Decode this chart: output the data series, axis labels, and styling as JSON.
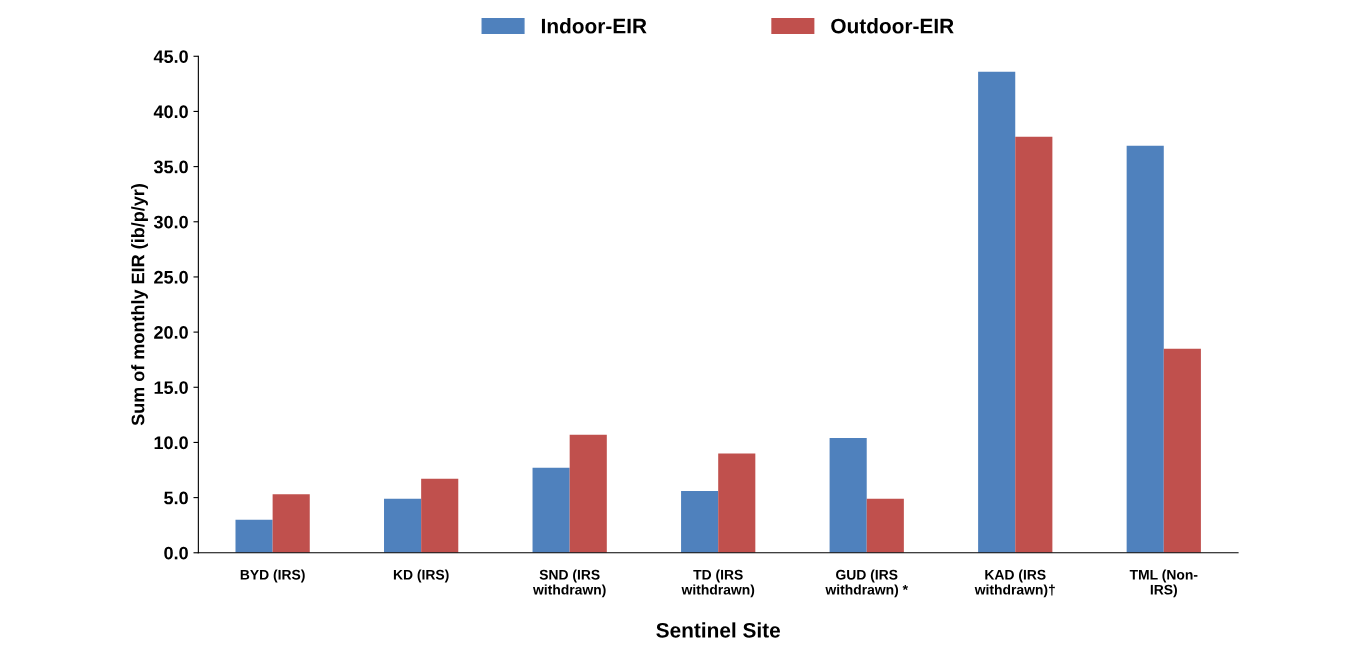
{
  "chart_data": {
    "type": "bar",
    "xlabel": "Sentinel Site",
    "ylabel": "Sum of monthly EIR (ib/p/yr)",
    "categories": [
      "BYD (IRS)",
      "KD (IRS)",
      "SND (IRS\nwithdrawn)",
      "TD (IRS\nwithdrawn)",
      "GUD (IRS\nwithdrawn) *",
      "KAD (IRS\nwithdrawn)†",
      "TML (Non-\nIRS)"
    ],
    "series": [
      {
        "name": "Indoor-EIR",
        "color": "#4f81bd",
        "values": [
          3.0,
          4.9,
          7.7,
          5.6,
          10.4,
          43.6,
          36.9
        ]
      },
      {
        "name": "Outdoor-EIR",
        "color": "#c0504d",
        "values": [
          5.3,
          6.7,
          10.7,
          9.0,
          4.9,
          37.7,
          18.5
        ]
      }
    ],
    "ylim": [
      0,
      45
    ],
    "yticks": [
      {
        "value": 0,
        "label": "0.0"
      },
      {
        "value": 5,
        "label": "5.0"
      },
      {
        "value": 10,
        "label": "10.0"
      },
      {
        "value": 15,
        "label": "15.0"
      },
      {
        "value": 20,
        "label": "20.0"
      },
      {
        "value": 25,
        "label": "25.0"
      },
      {
        "value": 30,
        "label": "30.0"
      },
      {
        "value": 35,
        "label": "35.0"
      },
      {
        "value": 40,
        "label": "40.0"
      },
      {
        "value": 45,
        "label": "45.0"
      }
    ],
    "grid": false,
    "legend": "top"
  }
}
